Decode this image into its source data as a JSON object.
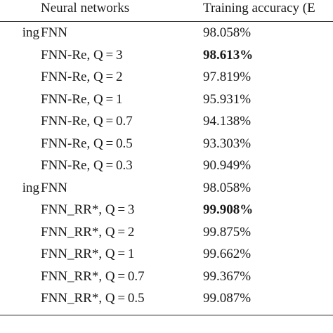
{
  "table": {
    "headers": {
      "network": "Neural networks",
      "accuracy": "Training accuracy (E"
    },
    "groups": [
      {
        "label": "ing",
        "rows": [
          {
            "network": "FNN",
            "accuracy": "98.058%",
            "bold": false
          },
          {
            "network": "FNN-Re, Q = 3",
            "accuracy": "98.613%",
            "bold": true
          },
          {
            "network": "FNN-Re, Q = 2",
            "accuracy": "97.819%",
            "bold": false
          },
          {
            "network": "FNN-Re, Q = 1",
            "accuracy": "95.931%",
            "bold": false
          },
          {
            "network": "FNN-Re, Q = 0.7",
            "accuracy": "94.138%",
            "bold": false
          },
          {
            "network": "FNN-Re, Q = 0.5",
            "accuracy": "93.303%",
            "bold": false
          },
          {
            "network": "FNN-Re, Q = 0.3",
            "accuracy": "90.949%",
            "bold": false
          }
        ]
      },
      {
        "label": "ing",
        "rows": [
          {
            "network": "FNN",
            "accuracy": "98.058%",
            "bold": false
          },
          {
            "network": "FNN_RR*, Q = 3",
            "accuracy": "99.908%",
            "bold": true
          },
          {
            "network": "FNN_RR*, Q = 2",
            "accuracy": "99.875%",
            "bold": false
          },
          {
            "network": "FNN_RR*, Q = 1",
            "accuracy": "99.662%",
            "bold": false
          },
          {
            "network": "FNN_RR*, Q = 0.7",
            "accuracy": "99.367%",
            "bold": false
          },
          {
            "network": "FNN_RR*, Q = 0.5",
            "accuracy": "99.087%",
            "bold": false
          }
        ]
      }
    ]
  }
}
